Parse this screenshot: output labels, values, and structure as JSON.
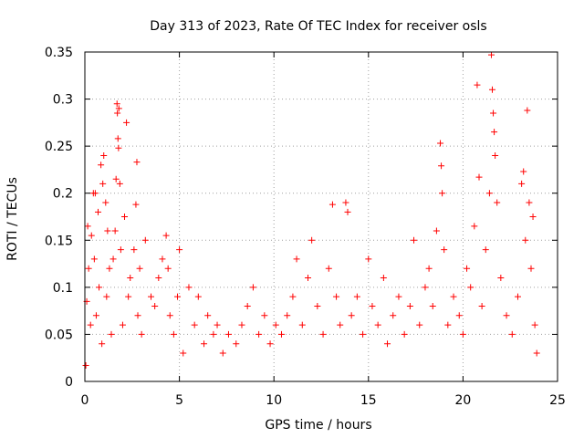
{
  "chart_data": {
    "type": "scatter",
    "title": "Day 313 of 2023, Rate Of TEC Index for receiver osls",
    "xlabel": "GPS time / hours",
    "ylabel": "ROTI / TECUs",
    "xlim": [
      0,
      25
    ],
    "ylim": [
      0,
      0.35
    ],
    "xticks": [
      "0",
      "5",
      "10",
      "15",
      "20",
      "25"
    ],
    "xtick_values": [
      0,
      5,
      10,
      15,
      20,
      25
    ],
    "yticks": [
      "0",
      "0.05",
      "0.1",
      "0.15",
      "0.2",
      "0.25",
      "0.3",
      "0.35"
    ],
    "ytick_values": [
      0,
      0.05,
      0.1,
      0.15,
      0.2,
      0.25,
      0.3,
      0.35
    ],
    "grid": true,
    "marker": "plus",
    "color": "#ff0000",
    "series": [
      {
        "points": [
          [
            0.05,
            0.017
          ],
          [
            0.1,
            0.085
          ],
          [
            0.15,
            0.165
          ],
          [
            0.2,
            0.12
          ],
          [
            0.3,
            0.06
          ],
          [
            0.35,
            0.155
          ],
          [
            0.45,
            0.2
          ],
          [
            0.5,
            0.13
          ],
          [
            0.55,
            0.2
          ],
          [
            0.6,
            0.07
          ],
          [
            0.7,
            0.18
          ],
          [
            0.75,
            0.1
          ],
          [
            0.85,
            0.23
          ],
          [
            0.9,
            0.04
          ],
          [
            0.95,
            0.21
          ],
          [
            1.0,
            0.24
          ],
          [
            1.1,
            0.19
          ],
          [
            1.15,
            0.09
          ],
          [
            1.2,
            0.16
          ],
          [
            1.3,
            0.12
          ],
          [
            1.4,
            0.05
          ],
          [
            1.5,
            0.13
          ],
          [
            1.6,
            0.16
          ],
          [
            1.65,
            0.215
          ],
          [
            1.7,
            0.295
          ],
          [
            1.72,
            0.285
          ],
          [
            1.75,
            0.258
          ],
          [
            1.78,
            0.248
          ],
          [
            1.8,
            0.29
          ],
          [
            1.85,
            0.21
          ],
          [
            1.9,
            0.14
          ],
          [
            2.0,
            0.06
          ],
          [
            2.1,
            0.175
          ],
          [
            2.2,
            0.275
          ],
          [
            2.3,
            0.09
          ],
          [
            2.4,
            0.11
          ],
          [
            2.6,
            0.14
          ],
          [
            2.7,
            0.188
          ],
          [
            2.75,
            0.233
          ],
          [
            2.8,
            0.07
          ],
          [
            2.9,
            0.12
          ],
          [
            3.0,
            0.05
          ],
          [
            3.2,
            0.15
          ],
          [
            3.5,
            0.09
          ],
          [
            3.7,
            0.08
          ],
          [
            3.9,
            0.11
          ],
          [
            4.1,
            0.13
          ],
          [
            4.3,
            0.155
          ],
          [
            4.4,
            0.12
          ],
          [
            4.5,
            0.07
          ],
          [
            4.7,
            0.05
          ],
          [
            4.9,
            0.09
          ],
          [
            5.0,
            0.14
          ],
          [
            5.2,
            0.03
          ],
          [
            5.5,
            0.1
          ],
          [
            5.8,
            0.06
          ],
          [
            6.0,
            0.09
          ],
          [
            6.3,
            0.04
          ],
          [
            6.5,
            0.07
          ],
          [
            6.8,
            0.05
          ],
          [
            7.0,
            0.06
          ],
          [
            7.3,
            0.03
          ],
          [
            7.6,
            0.05
          ],
          [
            8.0,
            0.04
          ],
          [
            8.3,
            0.06
          ],
          [
            8.6,
            0.08
          ],
          [
            8.9,
            0.1
          ],
          [
            9.2,
            0.05
          ],
          [
            9.5,
            0.07
          ],
          [
            9.8,
            0.04
          ],
          [
            10.1,
            0.06
          ],
          [
            10.4,
            0.05
          ],
          [
            10.7,
            0.07
          ],
          [
            11.0,
            0.09
          ],
          [
            11.2,
            0.13
          ],
          [
            11.5,
            0.06
          ],
          [
            11.8,
            0.11
          ],
          [
            12.0,
            0.15
          ],
          [
            12.3,
            0.08
          ],
          [
            12.6,
            0.05
          ],
          [
            12.9,
            0.12
          ],
          [
            13.1,
            0.188
          ],
          [
            13.3,
            0.09
          ],
          [
            13.5,
            0.06
          ],
          [
            13.8,
            0.19
          ],
          [
            13.9,
            0.18
          ],
          [
            14.1,
            0.07
          ],
          [
            14.4,
            0.09
          ],
          [
            14.7,
            0.05
          ],
          [
            15.0,
            0.13
          ],
          [
            15.2,
            0.08
          ],
          [
            15.5,
            0.06
          ],
          [
            15.8,
            0.11
          ],
          [
            16.0,
            0.04
          ],
          [
            16.3,
            0.07
          ],
          [
            16.6,
            0.09
          ],
          [
            16.9,
            0.05
          ],
          [
            17.2,
            0.08
          ],
          [
            17.4,
            0.15
          ],
          [
            17.7,
            0.06
          ],
          [
            18.0,
            0.1
          ],
          [
            18.2,
            0.12
          ],
          [
            18.4,
            0.08
          ],
          [
            18.6,
            0.16
          ],
          [
            18.8,
            0.253
          ],
          [
            18.85,
            0.229
          ],
          [
            18.9,
            0.2
          ],
          [
            19.0,
            0.14
          ],
          [
            19.2,
            0.06
          ],
          [
            19.5,
            0.09
          ],
          [
            19.8,
            0.07
          ],
          [
            20.0,
            0.05
          ],
          [
            20.2,
            0.12
          ],
          [
            20.4,
            0.1
          ],
          [
            20.6,
            0.165
          ],
          [
            20.75,
            0.315
          ],
          [
            20.85,
            0.217
          ],
          [
            21.0,
            0.08
          ],
          [
            21.2,
            0.14
          ],
          [
            21.4,
            0.2
          ],
          [
            21.5,
            0.347
          ],
          [
            21.55,
            0.31
          ],
          [
            21.6,
            0.285
          ],
          [
            21.65,
            0.265
          ],
          [
            21.7,
            0.24
          ],
          [
            21.8,
            0.19
          ],
          [
            22.0,
            0.11
          ],
          [
            22.3,
            0.07
          ],
          [
            22.6,
            0.05
          ],
          [
            22.9,
            0.09
          ],
          [
            23.1,
            0.21
          ],
          [
            23.2,
            0.223
          ],
          [
            23.3,
            0.15
          ],
          [
            23.4,
            0.288
          ],
          [
            23.5,
            0.19
          ],
          [
            23.6,
            0.12
          ],
          [
            23.7,
            0.175
          ],
          [
            23.8,
            0.06
          ],
          [
            23.9,
            0.03
          ]
        ]
      }
    ]
  }
}
